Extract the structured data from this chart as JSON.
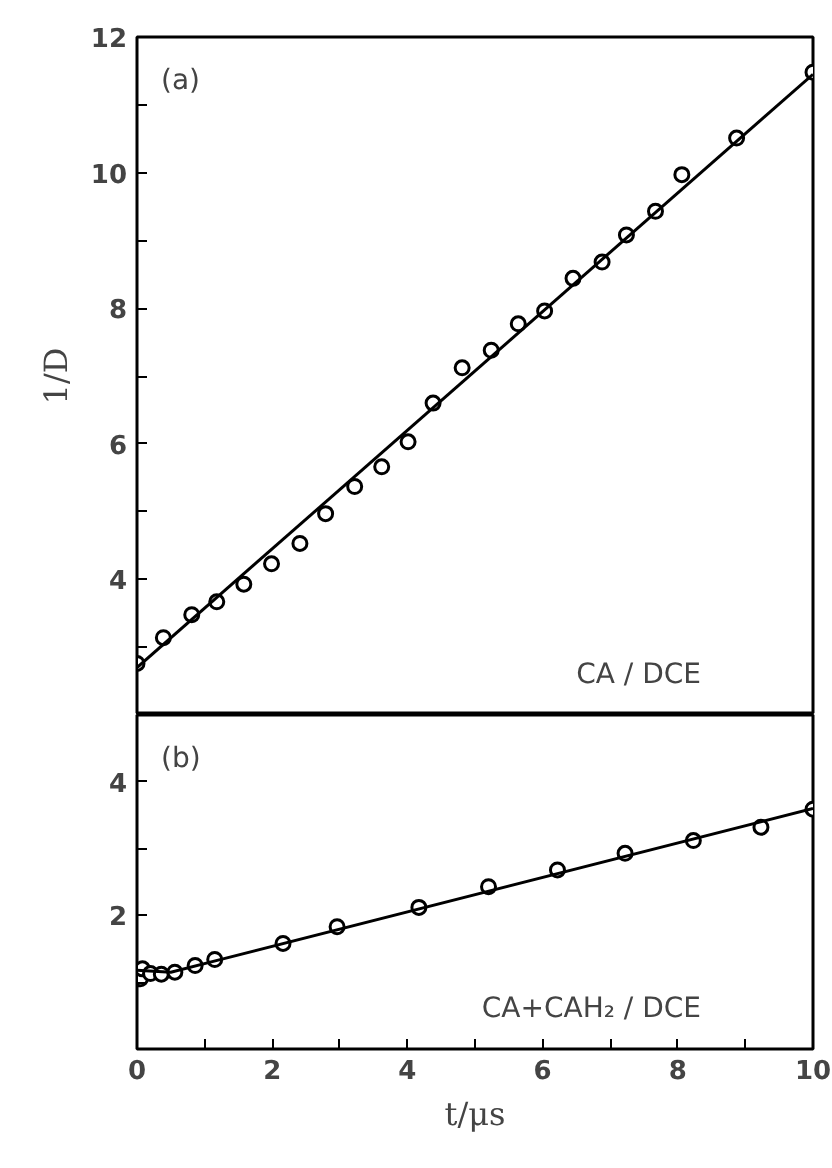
{
  "chart_data": [
    {
      "type": "scatter",
      "ylabel": "1/D",
      "annotations": [
        "(a)",
        "CA / DCE"
      ],
      "xlim": [
        0,
        10
      ],
      "ylim": [
        2,
        12
      ],
      "tick_labels": "y",
      "grid": false,
      "yticks": [
        {
          "value": 3,
          "label": null
        },
        4,
        {
          "value": 5,
          "label": null
        },
        6,
        {
          "value": 7,
          "label": null
        },
        8,
        {
          "value": 9,
          "label": null
        },
        10,
        {
          "value": 11,
          "label": null
        },
        12
      ],
      "series": [
        {
          "marker": "circle",
          "color": "#000000",
          "x": [
            0,
            0.39,
            0.81,
            1.18,
            1.58,
            1.99,
            2.41,
            2.79,
            3.22,
            3.62,
            4.01,
            4.38,
            4.81,
            5.24,
            5.64,
            6.03,
            6.45,
            6.88,
            7.24,
            7.67,
            8.06,
            8.87,
            10
          ],
          "values": [
            2.76,
            3.14,
            3.48,
            3.67,
            3.93,
            4.23,
            4.53,
            4.97,
            5.37,
            5.66,
            6.03,
            6.6,
            7.12,
            7.38,
            7.77,
            7.96,
            8.44,
            8.68,
            9.08,
            9.43,
            9.97,
            10.51,
            11.48
          ]
        },
        {
          "type": "line",
          "marker": "none",
          "color": "#000000",
          "x": [
            0,
            10
          ],
          "values": [
            2.7,
            11.45
          ]
        }
      ]
    },
    {
      "type": "scatter",
      "xlabel": "t/μs",
      "annotations": [
        "(b)",
        "CA+CAH₂ / DCE"
      ],
      "xlim": [
        0,
        10
      ],
      "ylim": [
        0,
        5
      ],
      "grid": false,
      "xticks": [
        0,
        {
          "value": 1,
          "label": null
        },
        2,
        {
          "value": 3,
          "label": null
        },
        4,
        {
          "value": 5,
          "label": null
        },
        6,
        {
          "value": 7,
          "label": null
        },
        8,
        {
          "value": 9,
          "label": null
        },
        10
      ],
      "yticks": [
        {
          "value": 1,
          "label": null
        },
        2,
        {
          "value": 3,
          "label": null
        },
        4
      ],
      "series": [
        {
          "marker": "circle",
          "color": "#000000",
          "x": [
            0.05,
            0.08,
            0.2,
            0.36,
            0.56,
            0.86,
            1.15,
            2.16,
            2.96,
            4.17,
            5.2,
            6.22,
            7.22,
            8.23,
            9.23,
            10
          ],
          "values": [
            1.05,
            1.2,
            1.13,
            1.12,
            1.15,
            1.25,
            1.34,
            1.58,
            1.83,
            2.12,
            2.43,
            2.68,
            2.93,
            3.12,
            3.32,
            3.59
          ]
        },
        {
          "type": "line",
          "marker": "none",
          "color": "#000000",
          "x": [
            0,
            0.5,
            1.2,
            10
          ],
          "values": [
            1.18,
            1.15,
            1.33,
            3.6
          ]
        }
      ]
    }
  ]
}
